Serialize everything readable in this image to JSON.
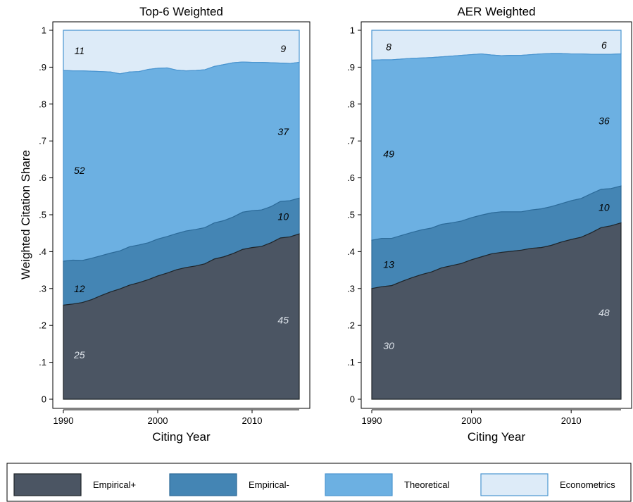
{
  "chart_data": {
    "type": "area",
    "stacked": true,
    "ylabel": "Weighted Citation Share",
    "series_names": [
      "Empirical+",
      "Empirical-",
      "Theoretical",
      "Econometrics"
    ],
    "colors": {
      "Empirical+": "#4b5563",
      "Empirical-": "#4485b4",
      "Theoretical": "#6cb0e2",
      "Econometrics": "#ddebf8",
      "outline_dark": "#1f2428",
      "outline_mid": "#2c6a98",
      "outline_light": "#4a95d0"
    },
    "ylim": [
      0,
      1
    ],
    "xlim": [
      1990,
      2015
    ],
    "y_ticks": [
      {
        "v": 0,
        "label": "0"
      },
      {
        "v": 0.1,
        "label": ".1"
      },
      {
        "v": 0.2,
        "label": ".2"
      },
      {
        "v": 0.3,
        "label": ".3"
      },
      {
        "v": 0.4,
        "label": ".4"
      },
      {
        "v": 0.5,
        "label": ".5"
      },
      {
        "v": 0.6,
        "label": ".6"
      },
      {
        "v": 0.7,
        "label": ".7"
      },
      {
        "v": 0.8,
        "label": ".8"
      },
      {
        "v": 0.9,
        "label": ".9"
      },
      {
        "v": 1,
        "label": "1"
      }
    ],
    "x_ticks": [
      {
        "v": 1990,
        "label": "1990"
      },
      {
        "v": 2000,
        "label": "2000"
      },
      {
        "v": 2010,
        "label": "2010"
      }
    ],
    "legend_position": "bottom",
    "panels": [
      {
        "title": "Top-6 Weighted",
        "xlabel": "Citing Year",
        "x": [
          1990,
          1991,
          1992,
          1993,
          1994,
          1995,
          1996,
          1997,
          1998,
          1999,
          2000,
          2001,
          2002,
          2003,
          2004,
          2005,
          2006,
          2007,
          2008,
          2009,
          2010,
          2011,
          2012,
          2013,
          2014,
          2015
        ],
        "cumulative": {
          "Empirical+": [
            0.255,
            0.258,
            0.262,
            0.27,
            0.281,
            0.291,
            0.299,
            0.309,
            0.316,
            0.324,
            0.334,
            0.342,
            0.351,
            0.357,
            0.361,
            0.367,
            0.38,
            0.386,
            0.395,
            0.406,
            0.411,
            0.414,
            0.424,
            0.437,
            0.44,
            0.448
          ],
          "Empirical-": [
            0.374,
            0.377,
            0.376,
            0.382,
            0.389,
            0.396,
            0.402,
            0.413,
            0.418,
            0.424,
            0.434,
            0.441,
            0.449,
            0.456,
            0.46,
            0.465,
            0.478,
            0.484,
            0.494,
            0.507,
            0.511,
            0.513,
            0.522,
            0.536,
            0.538,
            0.545
          ],
          "Theoretical": [
            0.891,
            0.89,
            0.89,
            0.889,
            0.888,
            0.887,
            0.882,
            0.887,
            0.888,
            0.894,
            0.897,
            0.898,
            0.892,
            0.89,
            0.891,
            0.893,
            0.902,
            0.907,
            0.912,
            0.914,
            0.913,
            0.913,
            0.912,
            0.911,
            0.91,
            0.913
          ],
          "Econometrics": [
            1,
            1,
            1,
            1,
            1,
            1,
            1,
            1,
            1,
            1,
            1,
            1,
            1,
            1,
            1,
            1,
            1,
            1,
            1,
            1,
            1,
            1,
            1,
            1,
            1,
            1
          ]
        },
        "annotations": [
          {
            "series": "Empirical+",
            "text": "25",
            "x": 1991.7,
            "y": 0.12,
            "tone": "light"
          },
          {
            "series": "Empirical-",
            "text": "12",
            "x": 1991.7,
            "y": 0.3,
            "tone": "dark"
          },
          {
            "series": "Theoretical",
            "text": "52",
            "x": 1991.7,
            "y": 0.62,
            "tone": "dark"
          },
          {
            "series": "Econometrics",
            "text": "11",
            "x": 1991.7,
            "y": 0.945,
            "tone": "dark"
          },
          {
            "series": "Empirical+",
            "text": "45",
            "x": 2013.3,
            "y": 0.215,
            "tone": "light"
          },
          {
            "series": "Empirical-",
            "text": "10",
            "x": 2013.3,
            "y": 0.495,
            "tone": "dark"
          },
          {
            "series": "Theoretical",
            "text": "37",
            "x": 2013.3,
            "y": 0.725,
            "tone": "dark"
          },
          {
            "series": "Econometrics",
            "text": "9",
            "x": 2013.3,
            "y": 0.95,
            "tone": "dark"
          }
        ]
      },
      {
        "title": "AER Weighted",
        "xlabel": "Citing Year",
        "x": [
          1990,
          1991,
          1992,
          1993,
          1994,
          1995,
          1996,
          1997,
          1998,
          1999,
          2000,
          2001,
          2002,
          2003,
          2004,
          2005,
          2006,
          2007,
          2008,
          2009,
          2010,
          2011,
          2012,
          2013,
          2014,
          2015
        ],
        "cumulative": {
          "Empirical+": [
            0.3,
            0.305,
            0.308,
            0.319,
            0.329,
            0.338,
            0.345,
            0.356,
            0.362,
            0.368,
            0.378,
            0.386,
            0.394,
            0.398,
            0.401,
            0.404,
            0.409,
            0.411,
            0.417,
            0.426,
            0.433,
            0.439,
            0.451,
            0.465,
            0.47,
            0.478
          ],
          "Empirical-": [
            0.431,
            0.436,
            0.436,
            0.444,
            0.452,
            0.459,
            0.464,
            0.474,
            0.478,
            0.483,
            0.492,
            0.499,
            0.505,
            0.508,
            0.508,
            0.508,
            0.513,
            0.516,
            0.522,
            0.53,
            0.538,
            0.544,
            0.557,
            0.569,
            0.571,
            0.578
          ],
          "Theoretical": [
            0.919,
            0.92,
            0.92,
            0.922,
            0.924,
            0.925,
            0.926,
            0.928,
            0.93,
            0.932,
            0.934,
            0.936,
            0.933,
            0.931,
            0.932,
            0.932,
            0.934,
            0.936,
            0.937,
            0.937,
            0.936,
            0.936,
            0.935,
            0.935,
            0.935,
            0.936
          ],
          "Econometrics": [
            1,
            1,
            1,
            1,
            1,
            1,
            1,
            1,
            1,
            1,
            1,
            1,
            1,
            1,
            1,
            1,
            1,
            1,
            1,
            1,
            1,
            1,
            1,
            1,
            1,
            1
          ]
        },
        "annotations": [
          {
            "series": "Empirical+",
            "text": "30",
            "x": 1991.7,
            "y": 0.145,
            "tone": "light"
          },
          {
            "series": "Empirical-",
            "text": "13",
            "x": 1991.7,
            "y": 0.365,
            "tone": "dark"
          },
          {
            "series": "Theoretical",
            "text": "49",
            "x": 1991.7,
            "y": 0.665,
            "tone": "dark"
          },
          {
            "series": "Econometrics",
            "text": "8",
            "x": 1991.7,
            "y": 0.955,
            "tone": "dark"
          },
          {
            "series": "Empirical+",
            "text": "48",
            "x": 2013.3,
            "y": 0.235,
            "tone": "light"
          },
          {
            "series": "Empirical-",
            "text": "10",
            "x": 2013.3,
            "y": 0.52,
            "tone": "dark"
          },
          {
            "series": "Theoretical",
            "text": "36",
            "x": 2013.3,
            "y": 0.755,
            "tone": "dark"
          },
          {
            "series": "Econometrics",
            "text": "6",
            "x": 2013.3,
            "y": 0.96,
            "tone": "dark"
          }
        ]
      }
    ]
  }
}
